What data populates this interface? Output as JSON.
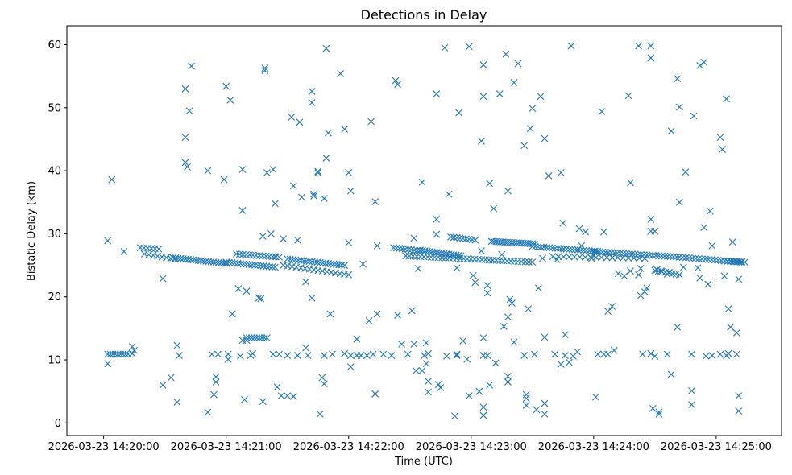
{
  "chart_data": {
    "type": "scatter",
    "title": "Detections in Delay",
    "xlabel": "Time (UTC)",
    "ylabel": "Bistatic Delay (km)",
    "marker": "x",
    "color": "#1f77b4",
    "xlim": [
      -18,
      332
    ],
    "ylim": [
      -2,
      63
    ],
    "x_unit": "seconds after 2026-03-23 14:20:00",
    "x_ticks": [
      {
        "value": 0,
        "label": "2026-03-23 14:20:00"
      },
      {
        "value": 60,
        "label": "2026-03-23 14:21:00"
      },
      {
        "value": 120,
        "label": "2026-03-23 14:22:00"
      },
      {
        "value": 180,
        "label": "2026-03-23 14:23:00"
      },
      {
        "value": 240,
        "label": "2026-03-23 14:24:00"
      },
      {
        "value": 300,
        "label": "2026-03-23 14:25:00"
      }
    ],
    "y_ticks": [
      {
        "value": 0,
        "label": "0"
      },
      {
        "value": 10,
        "label": "10"
      },
      {
        "value": 20,
        "label": "20"
      },
      {
        "value": 30,
        "label": "30"
      },
      {
        "value": 40,
        "label": "40"
      },
      {
        "value": 50,
        "label": "50"
      },
      {
        "value": 60,
        "label": "60"
      }
    ],
    "tracks": [
      {
        "name": "track-1",
        "x_start": 18,
        "x_end": 27,
        "y_start": 27.8,
        "y_end": 27.6,
        "n": 6
      },
      {
        "name": "track-2",
        "x_start": 20,
        "x_end": 35,
        "y_start": 26.8,
        "y_end": 26.0,
        "n": 8
      },
      {
        "name": "track-3",
        "x_start": 34,
        "x_end": 60,
        "y_start": 26.2,
        "y_end": 25.3,
        "n": 22
      },
      {
        "name": "track-4",
        "x_start": 60,
        "x_end": 84,
        "y_start": 25.5,
        "y_end": 24.7,
        "n": 18
      },
      {
        "name": "track-5",
        "x_start": 65,
        "x_end": 86,
        "y_start": 26.8,
        "y_end": 26.3,
        "n": 14
      },
      {
        "name": "track-6",
        "x_start": 90,
        "x_end": 118,
        "y_start": 26.0,
        "y_end": 25.0,
        "n": 22
      },
      {
        "name": "track-7",
        "x_start": 88,
        "x_end": 120,
        "y_start": 25.0,
        "y_end": 23.5,
        "n": 16
      },
      {
        "name": "track-8",
        "x_start": 142,
        "x_end": 155,
        "y_start": 27.8,
        "y_end": 27.3,
        "n": 10
      },
      {
        "name": "track-9",
        "x_start": 155,
        "x_end": 175,
        "y_start": 27.4,
        "y_end": 26.5,
        "n": 18
      },
      {
        "name": "track-10",
        "x_start": 148,
        "x_end": 210,
        "y_start": 26.5,
        "y_end": 25.5,
        "n": 36
      },
      {
        "name": "track-11",
        "x_start": 170,
        "x_end": 182,
        "y_start": 29.5,
        "y_end": 29.0,
        "n": 9
      },
      {
        "name": "track-12",
        "x_start": 190,
        "x_end": 211,
        "y_start": 28.8,
        "y_end": 28.4,
        "n": 20
      },
      {
        "name": "track-13",
        "x_start": 210,
        "x_end": 242,
        "y_start": 28.0,
        "y_end": 27.2,
        "n": 24
      },
      {
        "name": "track-14",
        "x_start": 220,
        "x_end": 265,
        "y_start": 26.4,
        "y_end": 26.1,
        "n": 18
      },
      {
        "name": "track-15",
        "x_start": 240,
        "x_end": 282,
        "y_start": 27.2,
        "y_end": 26.3,
        "n": 30
      },
      {
        "name": "track-16",
        "x_start": 282,
        "x_end": 312,
        "y_start": 26.3,
        "y_end": 25.5,
        "n": 20
      },
      {
        "name": "track-17",
        "x_start": 270,
        "x_end": 282,
        "y_start": 24.2,
        "y_end": 23.5,
        "n": 8
      },
      {
        "name": "track-18",
        "x_start": 2,
        "x_end": 12,
        "y_start": 10.9,
        "y_end": 10.9,
        "n": 9
      },
      {
        "name": "track-19",
        "x_start": 70,
        "x_end": 80,
        "y_start": 13.5,
        "y_end": 13.5,
        "n": 9
      },
      {
        "name": "track-20",
        "x_start": 304,
        "x_end": 314,
        "y_start": 25.7,
        "y_end": 25.5,
        "n": 8
      }
    ],
    "scattered": [
      [
        2,
        28.9
      ],
      [
        4,
        38.6
      ],
      [
        2,
        9.4
      ],
      [
        10,
        27.2
      ],
      [
        14,
        11.0
      ],
      [
        14,
        12.1
      ],
      [
        15,
        11.5
      ],
      [
        29,
        22.9
      ],
      [
        29,
        6.0
      ],
      [
        33,
        7.2
      ],
      [
        36,
        12.3
      ],
      [
        37,
        10.7
      ],
      [
        36,
        3.3
      ],
      [
        40,
        53.0
      ],
      [
        40,
        45.3
      ],
      [
        40,
        41.3
      ],
      [
        41,
        40.6
      ],
      [
        42,
        49.5
      ],
      [
        43,
        56.6
      ],
      [
        51,
        40.0
      ],
      [
        51,
        1.7
      ],
      [
        53,
        10.9
      ],
      [
        56,
        10.9
      ],
      [
        54,
        4.5
      ],
      [
        55,
        6.5
      ],
      [
        55,
        7.3
      ],
      [
        59,
        38.6
      ],
      [
        60,
        53.4
      ],
      [
        61,
        10.9
      ],
      [
        61,
        10.1
      ],
      [
        62,
        51.2
      ],
      [
        63,
        17.3
      ],
      [
        66,
        21.3
      ],
      [
        67,
        10.6
      ],
      [
        68,
        40.2
      ],
      [
        68,
        33.7
      ],
      [
        68,
        13.1
      ],
      [
        69,
        3.7
      ],
      [
        70,
        13.1
      ],
      [
        70,
        20.9
      ],
      [
        72,
        10.7
      ],
      [
        73,
        11.0
      ],
      [
        76,
        19.8
      ],
      [
        77,
        19.7
      ],
      [
        78,
        29.6
      ],
      [
        78,
        3.4
      ],
      [
        79,
        56.3
      ],
      [
        79,
        55.9
      ],
      [
        80,
        39.7
      ],
      [
        82,
        30.0
      ],
      [
        83,
        40.2
      ],
      [
        83,
        10.9
      ],
      [
        84,
        26.4
      ],
      [
        84,
        34.8
      ],
      [
        85,
        5.7
      ],
      [
        86,
        10.9
      ],
      [
        87,
        4.3
      ],
      [
        88,
        29.2
      ],
      [
        90,
        10.7
      ],
      [
        90,
        4.3
      ],
      [
        92,
        48.5
      ],
      [
        93,
        4.2
      ],
      [
        93,
        37.6
      ],
      [
        95,
        10.7
      ],
      [
        95,
        29.0
      ],
      [
        96,
        47.7
      ],
      [
        97,
        35.8
      ],
      [
        99,
        11.9
      ],
      [
        99,
        22.4
      ],
      [
        100,
        10.7
      ],
      [
        102,
        52.6
      ],
      [
        102,
        50.8
      ],
      [
        102,
        19.8
      ],
      [
        103,
        36.3
      ],
      [
        103,
        36.0
      ],
      [
        105,
        39.7
      ],
      [
        105,
        39.9
      ],
      [
        106,
        1.4
      ],
      [
        107,
        7.2
      ],
      [
        108,
        6.2
      ],
      [
        108,
        10.7
      ],
      [
        108,
        35.6
      ],
      [
        109,
        59.4
      ],
      [
        109,
        42.0
      ],
      [
        110,
        46.0
      ],
      [
        111,
        17.3
      ],
      [
        112,
        10.9
      ],
      [
        116,
        55.4
      ],
      [
        118,
        11.0
      ],
      [
        118,
        46.6
      ],
      [
        120,
        39.7
      ],
      [
        120,
        28.6
      ],
      [
        121,
        36.8
      ],
      [
        121,
        10.7
      ],
      [
        121,
        8.9
      ],
      [
        124,
        10.7
      ],
      [
        124,
        13.3
      ],
      [
        126,
        10.7
      ],
      [
        127,
        25.2
      ],
      [
        129,
        10.7
      ],
      [
        130,
        16.2
      ],
      [
        131,
        47.8
      ],
      [
        132,
        10.9
      ],
      [
        133,
        35.1
      ],
      [
        133,
        4.6
      ],
      [
        134,
        28.1
      ],
      [
        134,
        17.3
      ],
      [
        137,
        10.9
      ],
      [
        141,
        10.7
      ],
      [
        143,
        54.3
      ],
      [
        144,
        53.7
      ],
      [
        144,
        17.1
      ],
      [
        146,
        12.5
      ],
      [
        149,
        10.9
      ],
      [
        151,
        17.8
      ],
      [
        152,
        29.3
      ],
      [
        152,
        12.5
      ],
      [
        153,
        8.3
      ],
      [
        154,
        24.5
      ],
      [
        156,
        38.2
      ],
      [
        156,
        8.3
      ],
      [
        157,
        10.7
      ],
      [
        158,
        12.7
      ],
      [
        158,
        9.4
      ],
      [
        159,
        6.6
      ],
      [
        159,
        11.0
      ],
      [
        159,
        4.9
      ],
      [
        163,
        52.2
      ],
      [
        163,
        32.3
      ],
      [
        163,
        29.9
      ],
      [
        164,
        6.1
      ],
      [
        165,
        5.6
      ],
      [
        167,
        59.5
      ],
      [
        168,
        10.6
      ],
      [
        169,
        36.3
      ],
      [
        172,
        1.1
      ],
      [
        173,
        10.7
      ],
      [
        173,
        10.9
      ],
      [
        173,
        24.6
      ],
      [
        174,
        49.2
      ],
      [
        176,
        13.0
      ],
      [
        178,
        10.1
      ],
      [
        179,
        59.7
      ],
      [
        179,
        4.3
      ],
      [
        181,
        23.4
      ],
      [
        182,
        22.3
      ],
      [
        184,
        5.0
      ],
      [
        185,
        44.7
      ],
      [
        185,
        27.3
      ],
      [
        186,
        56.8
      ],
      [
        186,
        51.8
      ],
      [
        186,
        13.5
      ],
      [
        186,
        10.7
      ],
      [
        186,
        2.5
      ],
      [
        186,
        1.2
      ],
      [
        188,
        21.8
      ],
      [
        188,
        20.6
      ],
      [
        188,
        10.7
      ],
      [
        189,
        38.0
      ],
      [
        189,
        6.0
      ],
      [
        191,
        34.0
      ],
      [
        192,
        9.5
      ],
      [
        194,
        52.2
      ],
      [
        195,
        26.7
      ],
      [
        196,
        15.3
      ],
      [
        197,
        58.5
      ],
      [
        198,
        36.8
      ],
      [
        198,
        16.8
      ],
      [
        198,
        7.4
      ],
      [
        198,
        6.5
      ],
      [
        199,
        19.6
      ],
      [
        200,
        19.0
      ],
      [
        201,
        54.0
      ],
      [
        201,
        12.8
      ],
      [
        203,
        57.0
      ],
      [
        206,
        10.7
      ],
      [
        206,
        44.0
      ],
      [
        207,
        4.5
      ],
      [
        207,
        3.9
      ],
      [
        207,
        2.8
      ],
      [
        208,
        18.1
      ],
      [
        209,
        46.7
      ],
      [
        210,
        49.9
      ],
      [
        211,
        10.9
      ],
      [
        212,
        2.1
      ],
      [
        213,
        21.4
      ],
      [
        214,
        51.8
      ],
      [
        215,
        26.1
      ],
      [
        216,
        45.1
      ],
      [
        216,
        13.6
      ],
      [
        216,
        3.1
      ],
      [
        216,
        1.4
      ],
      [
        218,
        39.2
      ],
      [
        221,
        10.9
      ],
      [
        222,
        25.9
      ],
      [
        224,
        39.7
      ],
      [
        224,
        9.3
      ],
      [
        225,
        31.7
      ],
      [
        226,
        14.0
      ],
      [
        226,
        10.7
      ],
      [
        228,
        9.6
      ],
      [
        229,
        59.8
      ],
      [
        230,
        10.6
      ],
      [
        232,
        11.3
      ],
      [
        233,
        30.8
      ],
      [
        234,
        28.1
      ],
      [
        236,
        30.3
      ],
      [
        239,
        26.1
      ],
      [
        240,
        26.5
      ],
      [
        241,
        4.1
      ],
      [
        242,
        10.9
      ],
      [
        244,
        49.4
      ],
      [
        245,
        10.9
      ],
      [
        245,
        30.3
      ],
      [
        247,
        17.7
      ],
      [
        247,
        10.9
      ],
      [
        249,
        18.5
      ],
      [
        250,
        11.5
      ],
      [
        252,
        23.7
      ],
      [
        255,
        23.3
      ],
      [
        257,
        51.9
      ],
      [
        258,
        38.1
      ],
      [
        258,
        24.1
      ],
      [
        262,
        59.8
      ],
      [
        262,
        23.5
      ],
      [
        263,
        24.5
      ],
      [
        263,
        20.2
      ],
      [
        264,
        10.9
      ],
      [
        265,
        20.8
      ],
      [
        266,
        21.4
      ],
      [
        268,
        59.8
      ],
      [
        268,
        57.9
      ],
      [
        268,
        32.3
      ],
      [
        268,
        30.4
      ],
      [
        268,
        11.0
      ],
      [
        269,
        2.3
      ],
      [
        270,
        30.4
      ],
      [
        270,
        10.6
      ],
      [
        271,
        24.3
      ],
      [
        272,
        1.7
      ],
      [
        272,
        1.4
      ],
      [
        273,
        24.1
      ],
      [
        276,
        23.6
      ],
      [
        276,
        10.9
      ],
      [
        277,
        23.9
      ],
      [
        278,
        46.3
      ],
      [
        278,
        7.7
      ],
      [
        281,
        54.6
      ],
      [
        281,
        15.2
      ],
      [
        282,
        35.0
      ],
      [
        282,
        50.1
      ],
      [
        284,
        24.7
      ],
      [
        285,
        39.8
      ],
      [
        288,
        10.9
      ],
      [
        288,
        5.1
      ],
      [
        288,
        2.9
      ],
      [
        289,
        48.7
      ],
      [
        291,
        24.6
      ],
      [
        292,
        23.0
      ],
      [
        292,
        56.7
      ],
      [
        294,
        31.0
      ],
      [
        294,
        57.2
      ],
      [
        295,
        10.6
      ],
      [
        296,
        22.0
      ],
      [
        297,
        33.6
      ],
      [
        298,
        10.7
      ],
      [
        298,
        28.1
      ],
      [
        302,
        10.9
      ],
      [
        302,
        45.3
      ],
      [
        303,
        43.4
      ],
      [
        304,
        23.3
      ],
      [
        305,
        51.4
      ],
      [
        305,
        10.7
      ],
      [
        306,
        18.1
      ],
      [
        306,
        11.0
      ],
      [
        307,
        15.2
      ],
      [
        308,
        28.7
      ],
      [
        310,
        14.3
      ],
      [
        310,
        10.9
      ],
      [
        311,
        4.3
      ],
      [
        311,
        1.9
      ],
      [
        311,
        22.8
      ]
    ]
  }
}
